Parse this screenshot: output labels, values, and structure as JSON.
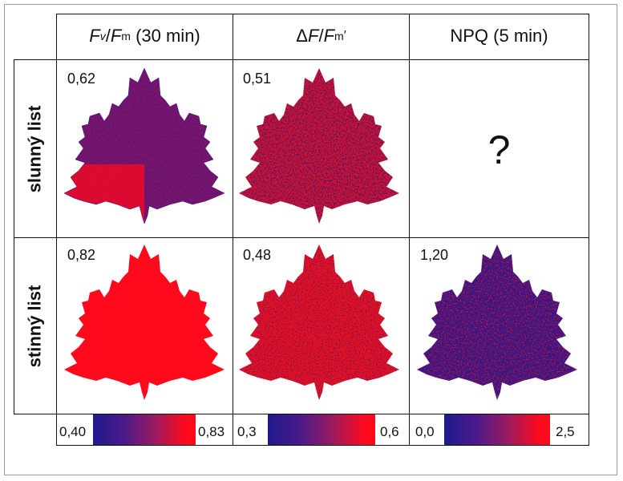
{
  "headers": {
    "col1": {
      "var_a": "F",
      "sub_a": "v",
      "slash": "/",
      "var_b": "F",
      "sub_b": "m",
      "rest": " (30 min)"
    },
    "col2": {
      "delta": "Δ",
      "var_a": "F",
      "slash": "/",
      "var_b": "F",
      "sub_b": "m",
      "prime": "′"
    },
    "col3": "NPQ (5 min)"
  },
  "rows": {
    "sun": "slunný list",
    "shade": "stinný list"
  },
  "values": {
    "sun_fvfm": "0,62",
    "sun_dff": "0,51",
    "sun_npq": "?",
    "shade_fvfm": "0,82",
    "shade_dff": "0,48",
    "shade_npq": "1,20"
  },
  "colorbars": {
    "col1": {
      "min": "0,40",
      "max": "0,83"
    },
    "col2": {
      "min": "0,3",
      "max": "0,6"
    },
    "col3": {
      "min": "0,0",
      "max": "2,5"
    }
  },
  "colors": {
    "low": "#1e1a8c",
    "high": "#ff0a1c",
    "mid": "#7a1a7c"
  }
}
